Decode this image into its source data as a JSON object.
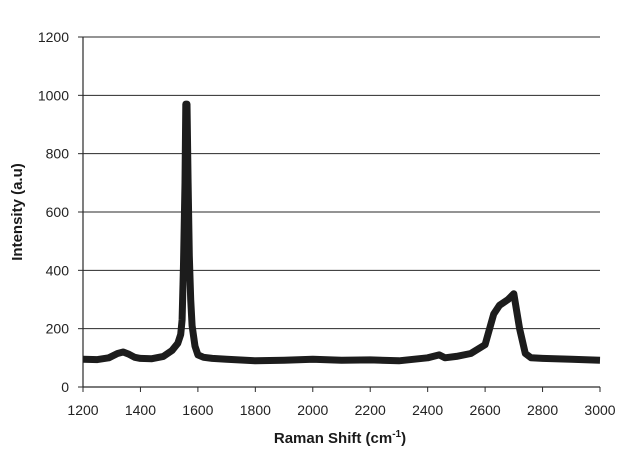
{
  "chart_data": {
    "type": "line",
    "title": "",
    "xlabel": "Raman Shift (cm",
    "xlabel_sup": "-1",
    "xlabel_close": ")",
    "ylabel": "Intensity (a.u)",
    "xlim": [
      1200,
      3000
    ],
    "ylim": [
      0,
      1200
    ],
    "xticks": [
      1200,
      1400,
      1600,
      1800,
      2000,
      2200,
      2400,
      2600,
      2800,
      3000
    ],
    "yticks": [
      0,
      200,
      400,
      600,
      800,
      1000,
      1200
    ],
    "grid": "horizontal",
    "legend": "none",
    "series_color": "#1c1c1c",
    "series": [
      {
        "x": [
          1200,
          1250,
          1290,
          1320,
          1340,
          1360,
          1380,
          1400,
          1440,
          1480,
          1510,
          1530,
          1540,
          1545,
          1550,
          1555,
          1558,
          1562,
          1566,
          1570,
          1575,
          1580,
          1590,
          1600,
          1620,
          1650,
          1700,
          1800,
          1900,
          2000,
          2100,
          2200,
          2300,
          2400,
          2440,
          2460,
          2500,
          2550,
          2600,
          2630,
          2650,
          2680,
          2700,
          2720,
          2740,
          2760,
          2800,
          2900,
          3000
        ],
        "y": [
          95,
          94,
          100,
          115,
          120,
          112,
          102,
          98,
          97,
          105,
          125,
          150,
          180,
          230,
          420,
          700,
          970,
          970,
          700,
          450,
          300,
          210,
          140,
          110,
          102,
          98,
          95,
          90,
          92,
          95,
          92,
          93,
          90,
          100,
          110,
          100,
          105,
          115,
          145,
          250,
          280,
          300,
          320,
          200,
          115,
          100,
          98,
          95,
          92
        ]
      }
    ]
  }
}
